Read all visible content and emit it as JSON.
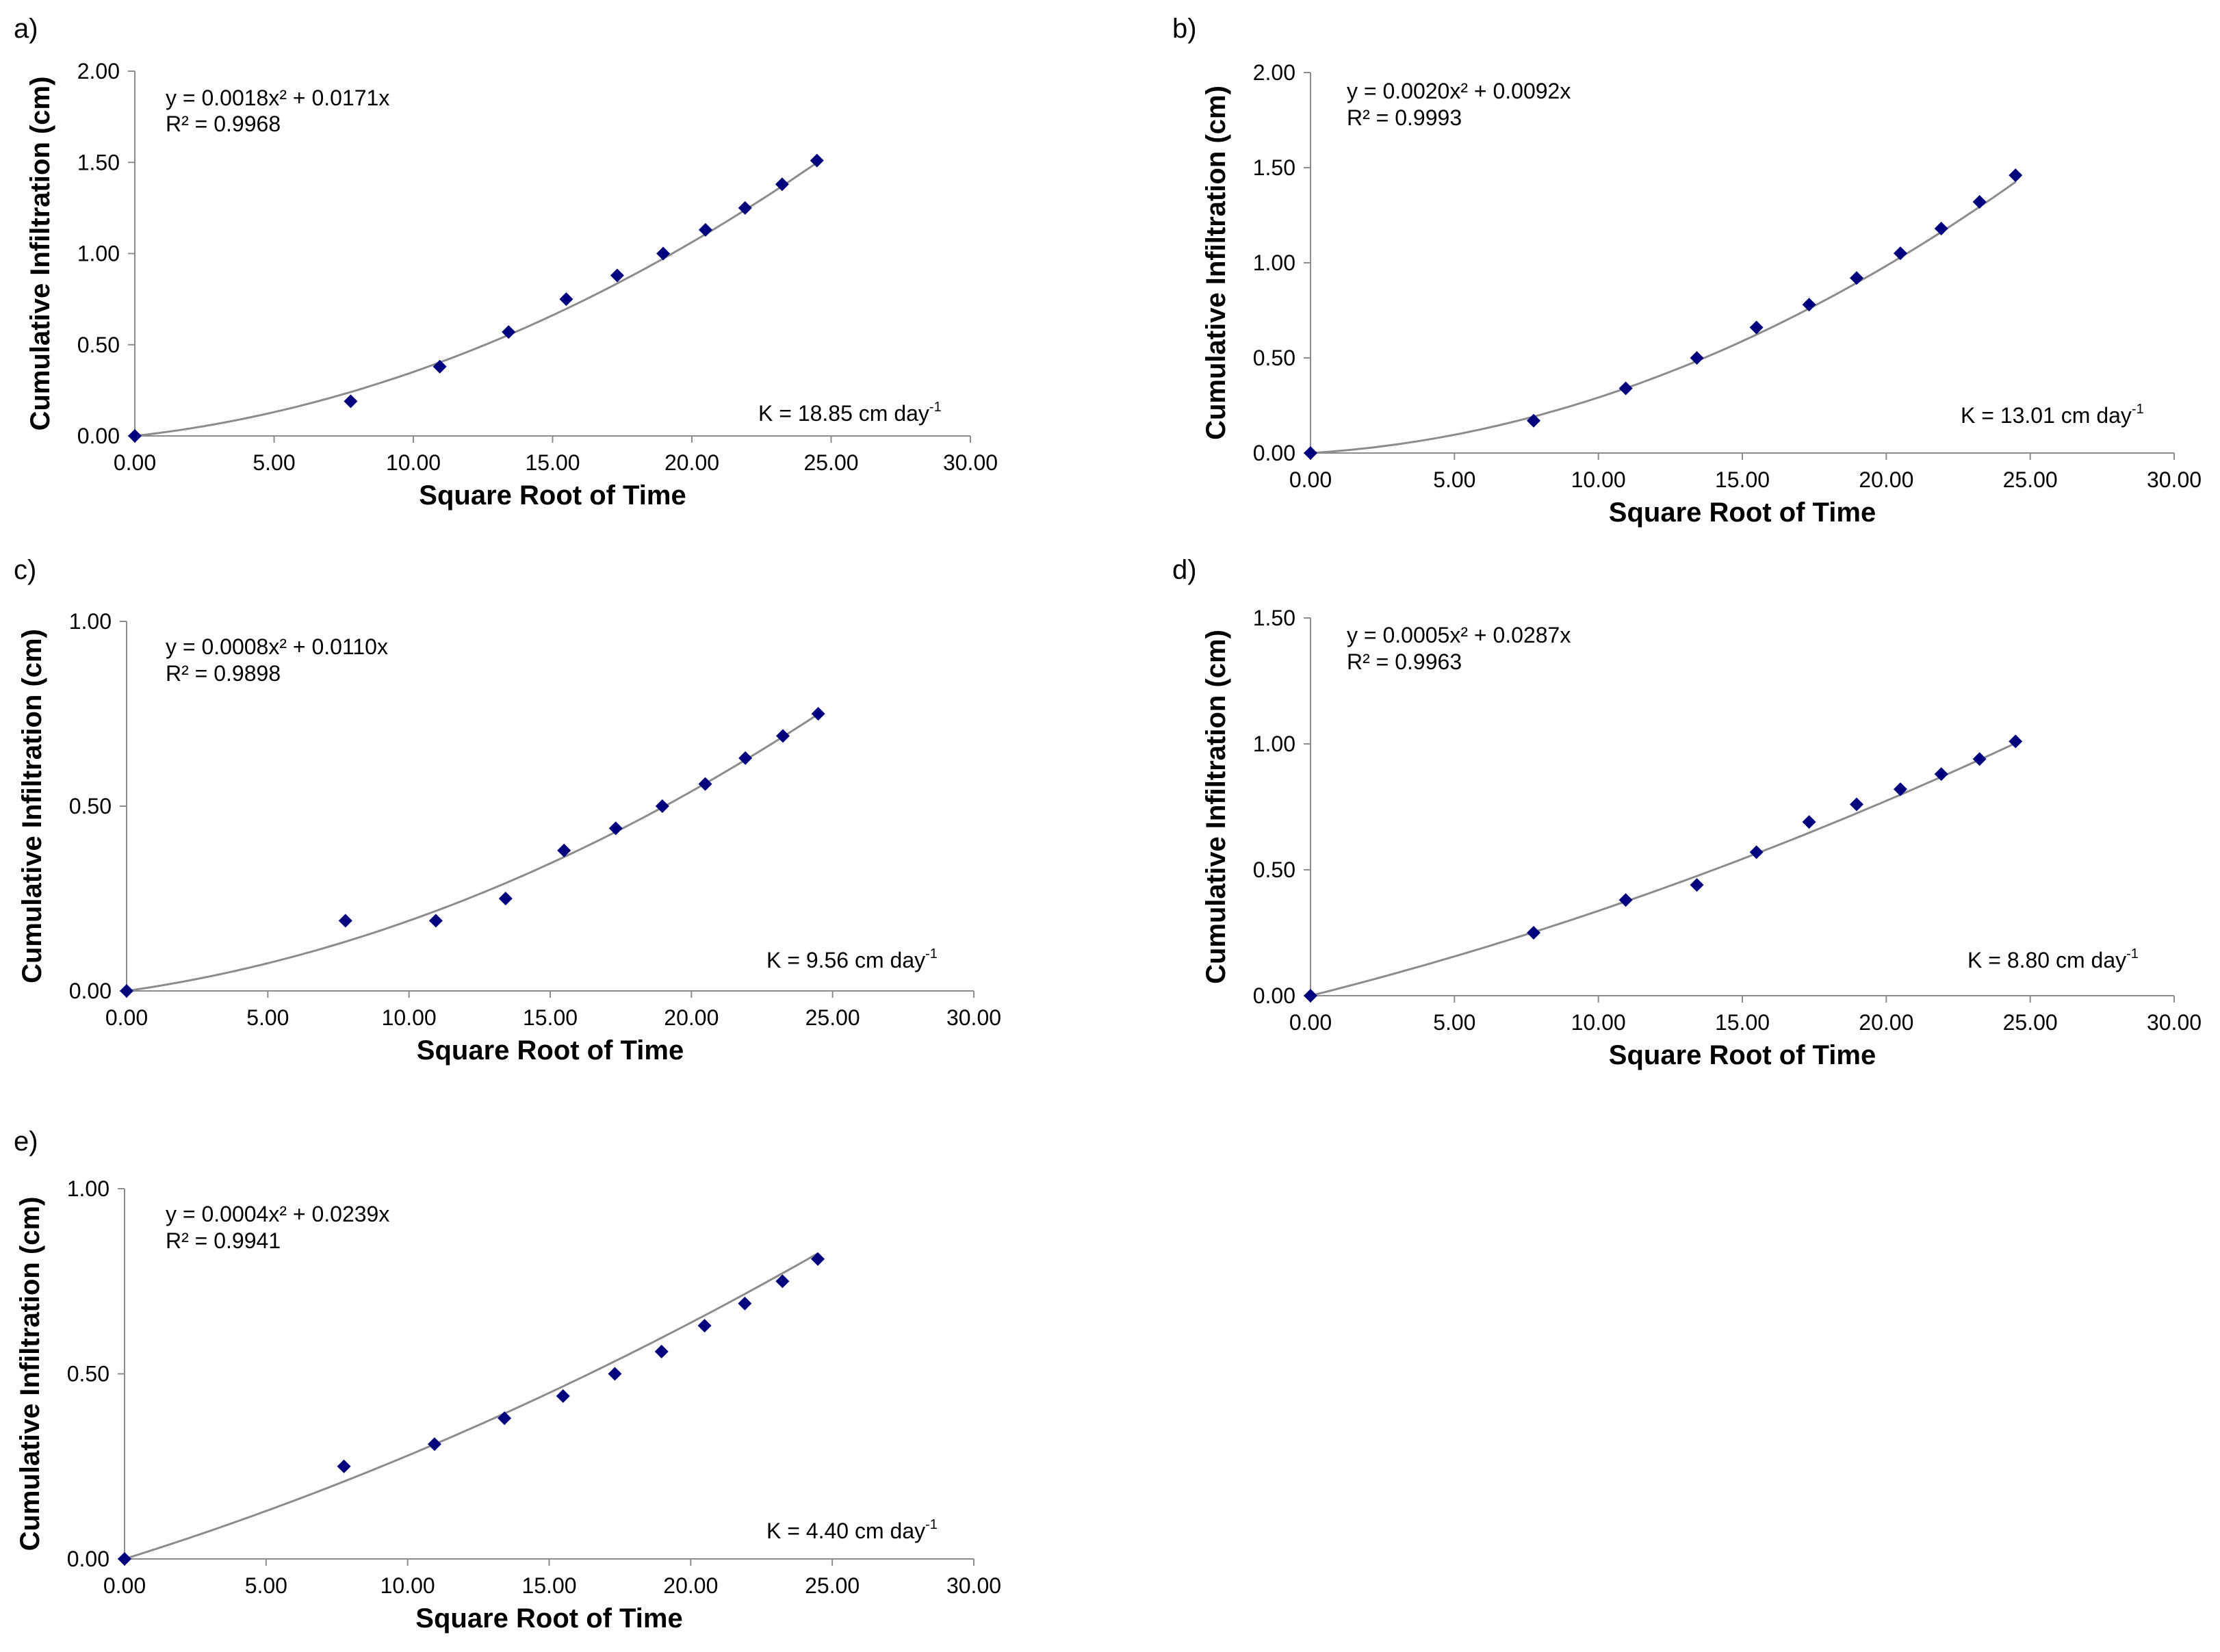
{
  "chart_data": [
    {
      "panel": "a)",
      "type": "scatter",
      "xlabel": "Square Root of Time",
      "ylabel": "Cumulative Infiltration (cm)",
      "xlim": [
        0,
        30
      ],
      "ylim": [
        0,
        2
      ],
      "xticks": [
        "0.00",
        "5.00",
        "10.00",
        "15.00",
        "20.00",
        "25.00",
        "30.00"
      ],
      "yticks": [
        "0.00",
        "0.50",
        "1.00",
        "1.50",
        "2.00"
      ],
      "equation": "y = 0.0018x² + 0.0171x",
      "r2": "R² = 0.9968",
      "k_text": "K = 18.85 cm day",
      "k_exp": "-1",
      "fit": {
        "a": 0.0018,
        "b": 0.0171,
        "x_max": 24.5
      },
      "points": [
        [
          0,
          0
        ],
        [
          7.75,
          0.19
        ],
        [
          10.95,
          0.38
        ],
        [
          13.42,
          0.57
        ],
        [
          15.49,
          0.75
        ],
        [
          17.32,
          0.88
        ],
        [
          18.97,
          1.0
        ],
        [
          20.49,
          1.13
        ],
        [
          21.91,
          1.25
        ],
        [
          23.24,
          1.38
        ],
        [
          24.49,
          1.51
        ]
      ]
    },
    {
      "panel": "b)",
      "type": "scatter",
      "xlabel": "Square Root of Time",
      "ylabel": "Cumulative Infiltration (cm)",
      "xlim": [
        0,
        30
      ],
      "ylim": [
        0,
        2
      ],
      "xticks": [
        "0.00",
        "5.00",
        "10.00",
        "15.00",
        "20.00",
        "25.00",
        "30.00"
      ],
      "yticks": [
        "0.00",
        "0.50",
        "1.00",
        "1.50",
        "2.00"
      ],
      "equation": "y = 0.0020x² + 0.0092x",
      "r2": "R² = 0.9993",
      "k_text": "K = 13.01 cm day",
      "k_exp": "-1",
      "fit": {
        "a": 0.002,
        "b": 0.0092,
        "x_max": 24.5
      },
      "points": [
        [
          0,
          0
        ],
        [
          7.75,
          0.17
        ],
        [
          10.95,
          0.34
        ],
        [
          13.42,
          0.5
        ],
        [
          15.49,
          0.66
        ],
        [
          17.32,
          0.78
        ],
        [
          18.97,
          0.92
        ],
        [
          20.49,
          1.05
        ],
        [
          21.91,
          1.18
        ],
        [
          23.24,
          1.32
        ],
        [
          24.49,
          1.46
        ]
      ]
    },
    {
      "panel": "c)",
      "type": "scatter",
      "xlabel": "Square Root of Time",
      "ylabel": "Cumulative Infiltration (cm)",
      "xlim": [
        0,
        30
      ],
      "ylim": [
        0,
        1
      ],
      "xticks": [
        "0.00",
        "5.00",
        "10.00",
        "15.00",
        "20.00",
        "25.00",
        "30.00"
      ],
      "yticks": [
        "0.00",
        "0.50",
        "1.00"
      ],
      "equation": "y = 0.0008x² + 0.0110x",
      "r2": "R² = 0.9898",
      "k_text": "K = 9.56 cm day",
      "k_exp": "-1",
      "fit": {
        "a": 0.0008,
        "b": 0.011,
        "x_max": 24.5
      },
      "points": [
        [
          0,
          0
        ],
        [
          7.75,
          0.19
        ],
        [
          10.95,
          0.19
        ],
        [
          13.42,
          0.25
        ],
        [
          15.49,
          0.38
        ],
        [
          17.32,
          0.44
        ],
        [
          18.97,
          0.5
        ],
        [
          20.49,
          0.56
        ],
        [
          21.91,
          0.63
        ],
        [
          23.24,
          0.69
        ],
        [
          24.49,
          0.75
        ]
      ]
    },
    {
      "panel": "d)",
      "type": "scatter",
      "xlabel": "Square Root of Time",
      "ylabel": "Cumulative Infiltration (cm)",
      "xlim": [
        0,
        30
      ],
      "ylim": [
        0,
        1.5
      ],
      "xticks": [
        "0.00",
        "5.00",
        "10.00",
        "15.00",
        "20.00",
        "25.00",
        "30.00"
      ],
      "yticks": [
        "0.00",
        "0.50",
        "1.00",
        "1.50"
      ],
      "equation": "y = 0.0005x² + 0.0287x",
      "r2": "R² = 0.9963",
      "k_text": "K = 8.80 cm day",
      "k_exp": "-1",
      "fit": {
        "a": 0.0005,
        "b": 0.0287,
        "x_max": 24.5
      },
      "points": [
        [
          0,
          0
        ],
        [
          7.75,
          0.25
        ],
        [
          10.95,
          0.38
        ],
        [
          13.42,
          0.44
        ],
        [
          15.49,
          0.57
        ],
        [
          17.32,
          0.69
        ],
        [
          18.97,
          0.76
        ],
        [
          20.49,
          0.82
        ],
        [
          21.91,
          0.88
        ],
        [
          23.24,
          0.94
        ],
        [
          24.49,
          1.01
        ]
      ]
    },
    {
      "panel": "e)",
      "type": "scatter",
      "xlabel": "Square Root of Time",
      "ylabel": "Cumulative Infiltration (cm)",
      "xlim": [
        0,
        30
      ],
      "ylim": [
        0,
        1
      ],
      "xticks": [
        "0.00",
        "5.00",
        "10.00",
        "15.00",
        "20.00",
        "25.00",
        "30.00"
      ],
      "yticks": [
        "0.00",
        "0.50",
        "1.00"
      ],
      "equation": "y = 0.0004x² + 0.0239x",
      "r2": "R² = 0.9941",
      "k_text": "K = 4.40 cm day",
      "k_exp": "-1",
      "fit": {
        "a": 0.0004,
        "b": 0.0239,
        "x_max": 24.5
      },
      "points": [
        [
          0,
          0
        ],
        [
          7.75,
          0.25
        ],
        [
          10.95,
          0.31
        ],
        [
          13.42,
          0.38
        ],
        [
          15.49,
          0.44
        ],
        [
          17.32,
          0.5
        ],
        [
          18.97,
          0.56
        ],
        [
          20.49,
          0.63
        ],
        [
          21.91,
          0.69
        ],
        [
          23.24,
          0.75
        ],
        [
          24.49,
          0.81
        ]
      ]
    }
  ],
  "style": {
    "marker_color": "#00007f",
    "fit_color": "#8c8c8c",
    "axis_color": "#8c8c8c"
  }
}
